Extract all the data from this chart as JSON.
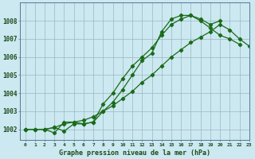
{
  "title": "Graphe pression niveau de la mer (hPa)",
  "background_color": "#cce8f0",
  "grid_color": "#9ab8c0",
  "line_color": "#1a6b1a",
  "xlim": [
    -0.5,
    23
  ],
  "ylim": [
    1001.4,
    1009.0
  ],
  "yticks": [
    1002,
    1003,
    1004,
    1005,
    1006,
    1007,
    1008
  ],
  "xticks": [
    0,
    1,
    2,
    3,
    4,
    5,
    6,
    7,
    8,
    9,
    10,
    11,
    12,
    13,
    14,
    15,
    16,
    17,
    18,
    19,
    20,
    21,
    22,
    23
  ],
  "series1_x": [
    0,
    1,
    2,
    3,
    4,
    5,
    6,
    7,
    8,
    9,
    10,
    11,
    12,
    13,
    14,
    15,
    16,
    17,
    18,
    19,
    20
  ],
  "series1_y": [
    1002.0,
    1002.0,
    1002.0,
    1002.1,
    1001.9,
    1002.3,
    1002.3,
    1002.4,
    1003.0,
    1003.5,
    1004.2,
    1005.0,
    1005.8,
    1006.2,
    1007.4,
    1008.1,
    1008.3,
    1008.3,
    1008.1,
    1007.8,
    1008.0
  ],
  "series2_x": [
    0,
    1,
    2,
    3,
    4,
    5,
    6,
    7,
    8,
    9,
    10,
    11,
    12,
    13,
    14,
    15,
    16,
    17,
    18,
    19,
    20,
    21,
    22,
    23
  ],
  "series2_y": [
    1002.0,
    1002.0,
    1002.0,
    1001.8,
    1002.4,
    1002.4,
    1002.3,
    1002.4,
    1003.4,
    1004.0,
    1004.8,
    1005.5,
    1006.0,
    1006.5,
    1007.2,
    1007.8,
    1008.1,
    1008.3,
    1008.0,
    1007.6,
    1007.2,
    1007.0,
    1006.7,
    null
  ],
  "series3_x": [
    0,
    1,
    2,
    3,
    4,
    5,
    6,
    7,
    8,
    9,
    10,
    11,
    12,
    13,
    14,
    15,
    16,
    17,
    18,
    19,
    20,
    21,
    22,
    23
  ],
  "series3_y": [
    1002.0,
    1002.0,
    1002.0,
    1002.1,
    1002.3,
    1002.4,
    1002.5,
    1002.7,
    1003.0,
    1003.3,
    1003.7,
    1004.1,
    1004.6,
    1005.0,
    1005.5,
    1006.0,
    1006.4,
    1006.8,
    1007.1,
    1007.4,
    1007.8,
    1007.5,
    1007.0,
    1006.6
  ]
}
